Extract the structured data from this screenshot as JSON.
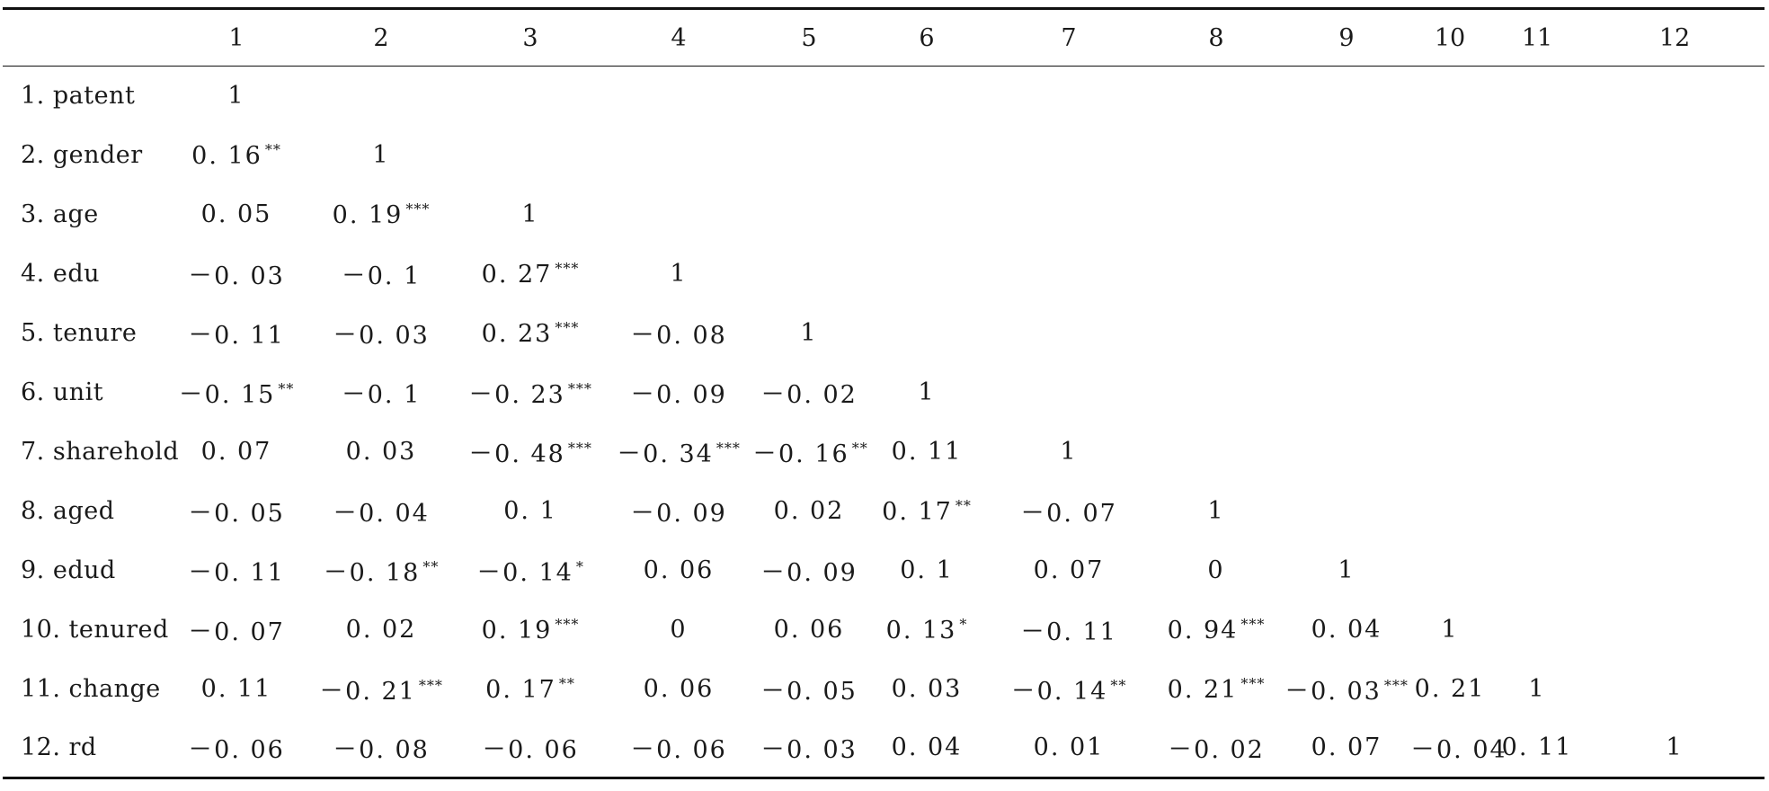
{
  "columns": [
    "1",
    "2",
    "3",
    "4",
    "5",
    "6",
    "7",
    "8",
    "9",
    "10",
    "11",
    "12"
  ],
  "rows": [
    {
      "label": "1. patent",
      "cells": [
        [
          "1",
          ""
        ],
        [
          "",
          ""
        ],
        [
          "",
          ""
        ],
        [
          "",
          ""
        ],
        [
          "",
          ""
        ],
        [
          "",
          ""
        ],
        [
          "",
          ""
        ],
        [
          "",
          ""
        ],
        [
          "",
          ""
        ],
        [
          "",
          ""
        ],
        [
          "",
          ""
        ],
        [
          "",
          ""
        ]
      ]
    },
    {
      "label": "2. gender",
      "cells": [
        [
          "0. 16",
          "**"
        ],
        [
          "1",
          ""
        ],
        [
          "",
          ""
        ],
        [
          "",
          ""
        ],
        [
          "",
          ""
        ],
        [
          "",
          ""
        ],
        [
          "",
          ""
        ],
        [
          "",
          ""
        ],
        [
          "",
          ""
        ],
        [
          "",
          ""
        ],
        [
          "",
          ""
        ],
        [
          "",
          ""
        ]
      ]
    },
    {
      "label": "3. age",
      "cells": [
        [
          "0. 05",
          ""
        ],
        [
          "0. 19",
          "***"
        ],
        [
          "1",
          ""
        ],
        [
          "",
          ""
        ],
        [
          "",
          ""
        ],
        [
          "",
          ""
        ],
        [
          "",
          ""
        ],
        [
          "",
          ""
        ],
        [
          "",
          ""
        ],
        [
          "",
          ""
        ],
        [
          "",
          ""
        ],
        [
          "",
          ""
        ]
      ]
    },
    {
      "label": "4. edu",
      "cells": [
        [
          "－0. 03",
          ""
        ],
        [
          "－0. 1",
          ""
        ],
        [
          "0. 27",
          "***"
        ],
        [
          "1",
          ""
        ],
        [
          "",
          ""
        ],
        [
          "",
          ""
        ],
        [
          "",
          ""
        ],
        [
          "",
          ""
        ],
        [
          "",
          ""
        ],
        [
          "",
          ""
        ],
        [
          "",
          ""
        ],
        [
          "",
          ""
        ]
      ]
    },
    {
      "label": "5. tenure",
      "cells": [
        [
          "－0. 11",
          ""
        ],
        [
          "－0. 03",
          ""
        ],
        [
          "0. 23",
          "***"
        ],
        [
          "－0. 08",
          ""
        ],
        [
          "1",
          ""
        ],
        [
          "",
          ""
        ],
        [
          "",
          ""
        ],
        [
          "",
          ""
        ],
        [
          "",
          ""
        ],
        [
          "",
          ""
        ],
        [
          "",
          ""
        ],
        [
          "",
          ""
        ]
      ]
    },
    {
      "label": "6. unit",
      "cells": [
        [
          "－0. 15",
          "**"
        ],
        [
          "－0. 1",
          ""
        ],
        [
          "－0. 23",
          "***"
        ],
        [
          "－0. 09",
          ""
        ],
        [
          "－0. 02",
          ""
        ],
        [
          "1",
          ""
        ],
        [
          "",
          ""
        ],
        [
          "",
          ""
        ],
        [
          "",
          ""
        ],
        [
          "",
          ""
        ],
        [
          "",
          ""
        ],
        [
          "",
          ""
        ]
      ]
    },
    {
      "label": "7. sharehold",
      "cells": [
        [
          "0. 07",
          ""
        ],
        [
          "0. 03",
          ""
        ],
        [
          "－0. 48",
          "***"
        ],
        [
          "－0. 34",
          "***"
        ],
        [
          "－0. 16",
          "**"
        ],
        [
          "0. 11",
          ""
        ],
        [
          "1",
          ""
        ],
        [
          "",
          ""
        ],
        [
          "",
          ""
        ],
        [
          "",
          ""
        ],
        [
          "",
          ""
        ],
        [
          "",
          ""
        ]
      ]
    },
    {
      "label": "8. aged",
      "cells": [
        [
          "－0. 05",
          ""
        ],
        [
          "－0. 04",
          ""
        ],
        [
          "0. 1",
          ""
        ],
        [
          "－0. 09",
          ""
        ],
        [
          "0. 02",
          ""
        ],
        [
          "0. 17",
          "**"
        ],
        [
          "－0. 07",
          ""
        ],
        [
          "1",
          ""
        ],
        [
          "",
          ""
        ],
        [
          "",
          ""
        ],
        [
          "",
          ""
        ],
        [
          "",
          ""
        ]
      ]
    },
    {
      "label": "9. edud",
      "cells": [
        [
          "－0. 11",
          ""
        ],
        [
          "－0. 18",
          "**"
        ],
        [
          "－0. 14",
          "*"
        ],
        [
          "0. 06",
          ""
        ],
        [
          "－0. 09",
          ""
        ],
        [
          "0. 1",
          ""
        ],
        [
          "0. 07",
          ""
        ],
        [
          "0",
          ""
        ],
        [
          "1",
          ""
        ],
        [
          "",
          ""
        ],
        [
          "",
          ""
        ],
        [
          "",
          ""
        ]
      ]
    },
    {
      "label": "10. tenured",
      "cells": [
        [
          "－0. 07",
          ""
        ],
        [
          "0. 02",
          ""
        ],
        [
          "0. 19",
          "***"
        ],
        [
          "0",
          ""
        ],
        [
          "0. 06",
          ""
        ],
        [
          "0. 13",
          "*"
        ],
        [
          "－0. 11",
          ""
        ],
        [
          "0. 94",
          "***"
        ],
        [
          "0. 04",
          ""
        ],
        [
          "1",
          ""
        ],
        [
          "",
          ""
        ],
        [
          "",
          ""
        ]
      ]
    },
    {
      "label": "11. change",
      "cells": [
        [
          "0. 11",
          ""
        ],
        [
          "－0. 21",
          "***"
        ],
        [
          "0. 17",
          "**"
        ],
        [
          "0. 06",
          ""
        ],
        [
          "－0. 05",
          ""
        ],
        [
          "0. 03",
          ""
        ],
        [
          "－0. 14",
          "**"
        ],
        [
          "0. 21",
          "***"
        ],
        [
          "－0. 03",
          "***"
        ],
        [
          "0. 21",
          ""
        ],
        [
          "1",
          ""
        ],
        [
          "",
          ""
        ]
      ]
    },
    {
      "label": "12. rd",
      "cells": [
        [
          "－0. 06",
          ""
        ],
        [
          "－0. 08",
          ""
        ],
        [
          "－0. 06",
          ""
        ],
        [
          "－0. 06",
          ""
        ],
        [
          "－0. 03",
          ""
        ],
        [
          "0. 04",
          ""
        ],
        [
          "0. 01",
          ""
        ],
        [
          "－0. 02",
          ""
        ],
        [
          "0. 07",
          ""
        ],
        [
          "－0. 04",
          ""
        ],
        [
          "0. 11",
          ""
        ],
        [
          "1",
          ""
        ]
      ]
    }
  ]
}
